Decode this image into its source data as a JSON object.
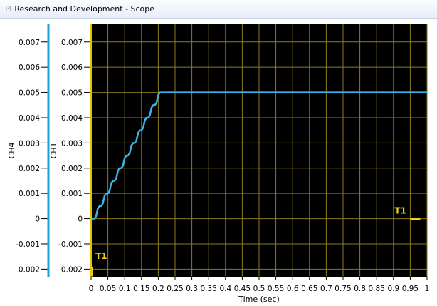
{
  "window": {
    "title": "PI Research and Development - Scope"
  },
  "colors": {
    "plot_bg": "#000000",
    "grid": "#8a7a1e",
    "ch4_axis": "#1a9fd8",
    "ch1_axis": "#e6c300",
    "trace": "#3cb3e6",
    "trigger": "#f0d020"
  },
  "chart_data": {
    "type": "line",
    "xlabel": "Time (sec)",
    "ylabel_ch4": "CH4",
    "ylabel_ch1": "CH1",
    "xlim": [
      0,
      1
    ],
    "ylim": [
      -0.0023,
      0.0077
    ],
    "x_ticks": [
      "0",
      "0.05",
      "0.1",
      "0.15",
      "0.2",
      "0.25",
      "0.3",
      "0.35",
      "0.4",
      "0.45",
      "0.5",
      "0.55",
      "0.6",
      "0.65",
      "0.7",
      "0.75",
      "0.8",
      "0.85",
      "0.9",
      "0.95",
      "1"
    ],
    "y_ticks": [
      "0.007",
      "0.006",
      "0.005",
      "0.004",
      "0.003",
      "0.002",
      "0.001",
      "0",
      "-0.001",
      "-0.002"
    ],
    "series": [
      {
        "name": "CH1",
        "x": [
          0,
          0.005,
          0.01,
          0.015,
          0.02,
          0.025,
          0.03,
          0.035,
          0.04,
          0.045,
          0.05,
          0.055,
          0.06,
          0.065,
          0.07,
          0.075,
          0.08,
          0.085,
          0.09,
          0.095,
          0.1,
          0.105,
          0.11,
          0.115,
          0.12,
          0.125,
          0.13,
          0.135,
          0.14,
          0.145,
          0.15,
          0.155,
          0.16,
          0.165,
          0.17,
          0.175,
          0.18,
          0.185,
          0.19,
          0.195,
          0.2,
          0.205,
          0.21,
          0.3,
          0.4,
          0.5,
          0.6,
          0.7,
          0.8,
          0.9,
          1.0
        ],
        "values": [
          0,
          0,
          0,
          0.0001,
          0.0004,
          0.0005,
          0.0005,
          0.0006,
          0.0009,
          0.001,
          0.001,
          0.0011,
          0.0014,
          0.0015,
          0.0015,
          0.0016,
          0.0019,
          0.002,
          0.002,
          0.0021,
          0.0024,
          0.0025,
          0.0025,
          0.0026,
          0.0029,
          0.003,
          0.003,
          0.0031,
          0.0034,
          0.0035,
          0.0035,
          0.0036,
          0.0039,
          0.004,
          0.004,
          0.0041,
          0.0044,
          0.0045,
          0.0045,
          0.0046,
          0.0049,
          0.005,
          0.005,
          0.005,
          0.005,
          0.005,
          0.005,
          0.005,
          0.005,
          0.005,
          0.005
        ]
      }
    ],
    "markers": [
      {
        "label": "T1",
        "x": 0,
        "orientation": "vertical"
      },
      {
        "label": "T1",
        "y": 0,
        "x_from": 0.95,
        "x_to": 0.98,
        "orientation": "horizontal"
      }
    ]
  }
}
